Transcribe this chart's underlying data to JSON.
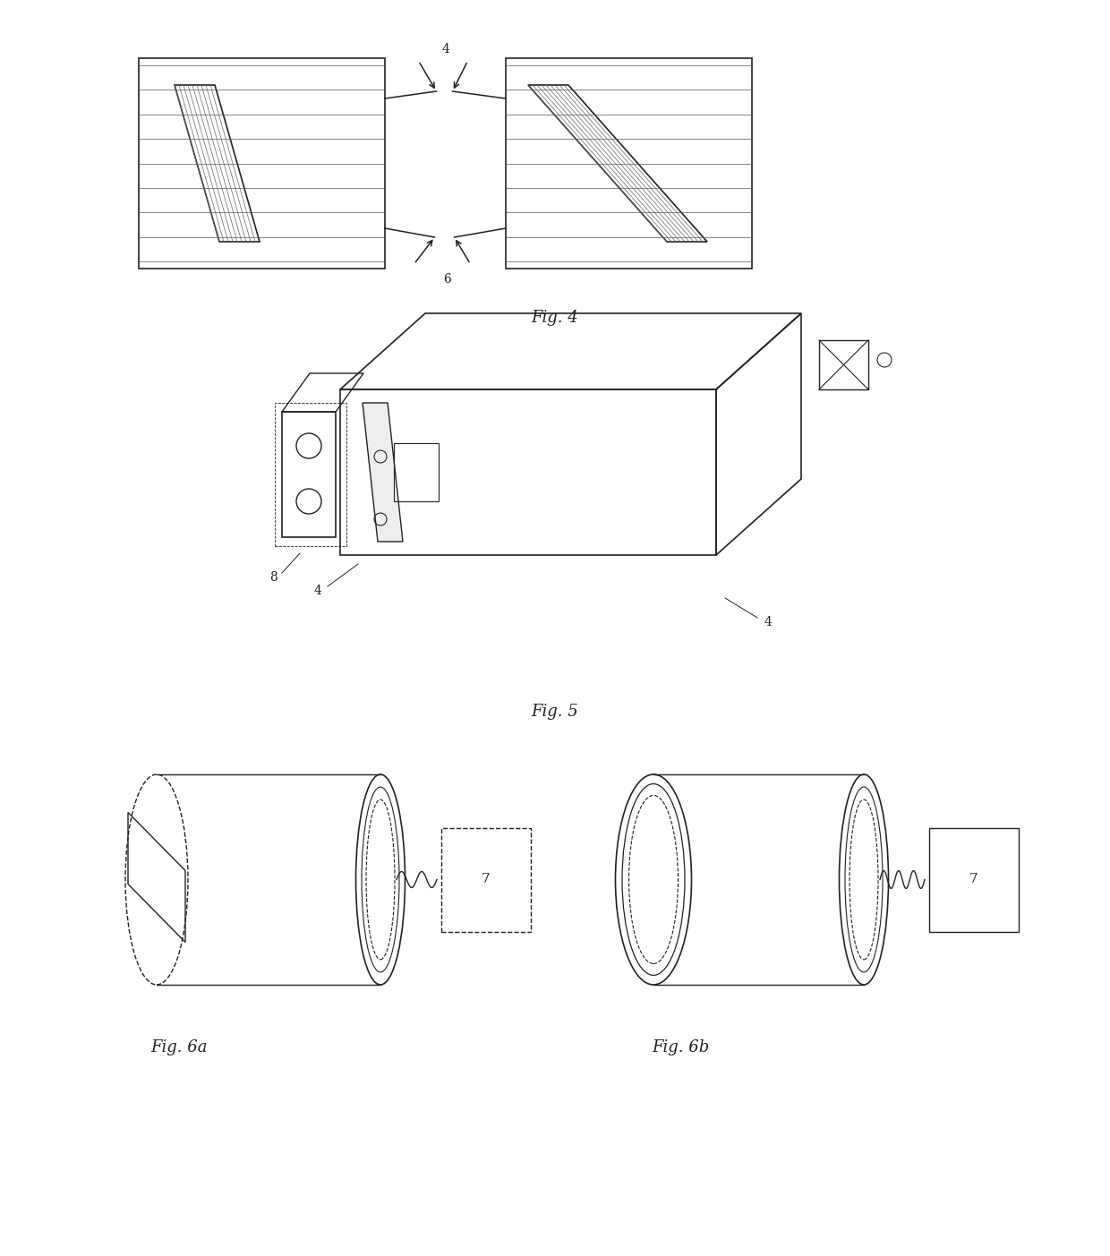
{
  "bg_color": "#ffffff",
  "line_color": "#222222",
  "fig4_label": "Fig. 4",
  "fig5_label": "Fig. 5",
  "fig6a_label": "Fig. 6a",
  "fig6b_label": "Fig. 6b",
  "label_4": "4",
  "label_6": "6",
  "label_8": "8",
  "label_4b": "4",
  "label_4c": "4",
  "label_7a": "7",
  "label_7b": "7"
}
